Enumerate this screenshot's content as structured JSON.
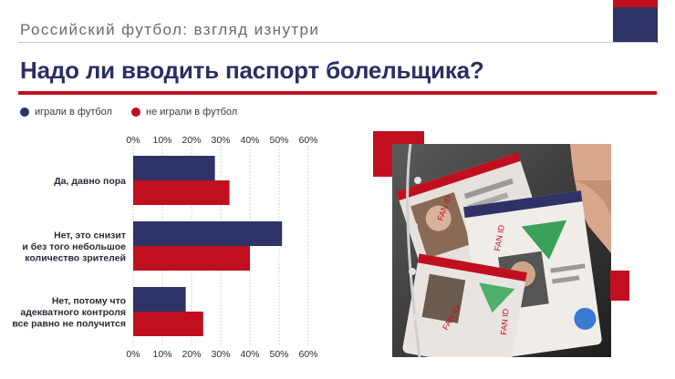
{
  "header": {
    "section": "Российский футбол: взгляд изнутри",
    "title": "Надо ли вводить паспорт болельщика?"
  },
  "colors": {
    "navy": "#2e3266",
    "red": "#c0101f",
    "grid": "#c9cbd6",
    "text": "#2a2a38"
  },
  "legend": [
    {
      "label": "играли в футбол",
      "color": "#2e3266"
    },
    {
      "label": "не играли в футбол",
      "color": "#c0101f"
    }
  ],
  "chart_data": {
    "type": "bar",
    "orientation": "horizontal",
    "categories": [
      "Да, давно пора",
      "Нет, это снизит и без того небольшое количество зрителей",
      "Нет, потому что адекватного контроля все равно не получится"
    ],
    "category_lines": [
      [
        "Да, давно пора"
      ],
      [
        "Нет, это снизит",
        "и без того небольшое",
        "количество зрителей"
      ],
      [
        "Нет, потому что",
        "адекватного контроля",
        "все равно не получится"
      ]
    ],
    "series": [
      {
        "name": "играли в футбол",
        "color": "#2e3266",
        "values": [
          28,
          51,
          18
        ]
      },
      {
        "name": "не играли в футбол",
        "color": "#c0101f",
        "values": [
          33,
          40,
          24
        ]
      }
    ],
    "ticks": [
      "0%",
      "10%",
      "20%",
      "30%",
      "40%",
      "50%",
      "60%"
    ],
    "xlim": [
      0,
      60
    ],
    "grid": true,
    "axis_labels_top_and_bottom": true
  },
  "photo": {
    "badges": [
      "FAN ID",
      "FAN ID",
      "FAN ID",
      "FAN ID"
    ]
  }
}
